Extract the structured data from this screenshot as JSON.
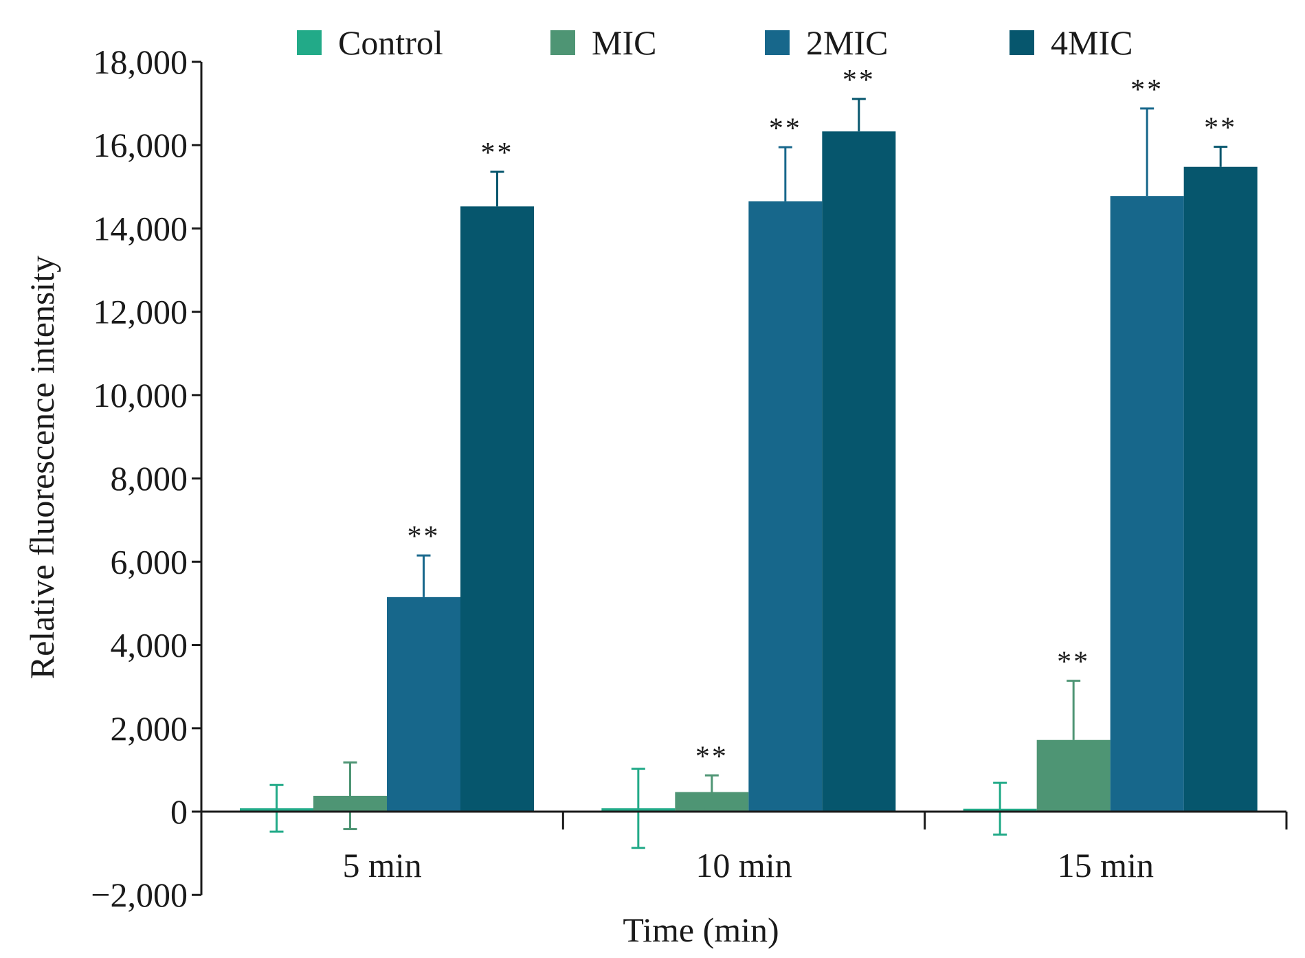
{
  "chart_data": {
    "type": "bar",
    "title": "",
    "xlabel": "Time (min)",
    "ylabel": "Relative fluorescence intensity",
    "ylim": [
      -2000,
      18000
    ],
    "yticks": [
      -2000,
      0,
      2000,
      4000,
      6000,
      8000,
      10000,
      12000,
      14000,
      16000,
      18000
    ],
    "ytick_labels": [
      "−2,000",
      "0",
      "2,000",
      "4,000",
      "6,000",
      "8,000",
      "10,000",
      "12,000",
      "14,000",
      "16,000",
      "18,000"
    ],
    "categories": [
      "5 min",
      "10 min",
      "15 min"
    ],
    "legend_position": "top",
    "grid": false,
    "series": [
      {
        "name": "Control",
        "color": "#22aa88",
        "values": [
          80,
          80,
          70
        ],
        "errors": [
          560,
          950,
          620
        ],
        "significance": [
          "",
          "",
          ""
        ]
      },
      {
        "name": "MIC",
        "color": "#4e9574",
        "values": [
          380,
          470,
          1720
        ],
        "errors": [
          800,
          400,
          1420
        ],
        "significance": [
          "",
          "**",
          "**"
        ]
      },
      {
        "name": "2MIC",
        "color": "#17678b",
        "values": [
          5150,
          14650,
          14780
        ],
        "errors": [
          1000,
          1300,
          2100
        ],
        "significance": [
          "**",
          "**",
          "**"
        ]
      },
      {
        "name": "4MIC",
        "color": "#06566d",
        "values": [
          14530,
          16330,
          15480
        ],
        "errors": [
          830,
          780,
          480
        ],
        "significance": [
          "**",
          "**",
          "**"
        ]
      }
    ]
  }
}
